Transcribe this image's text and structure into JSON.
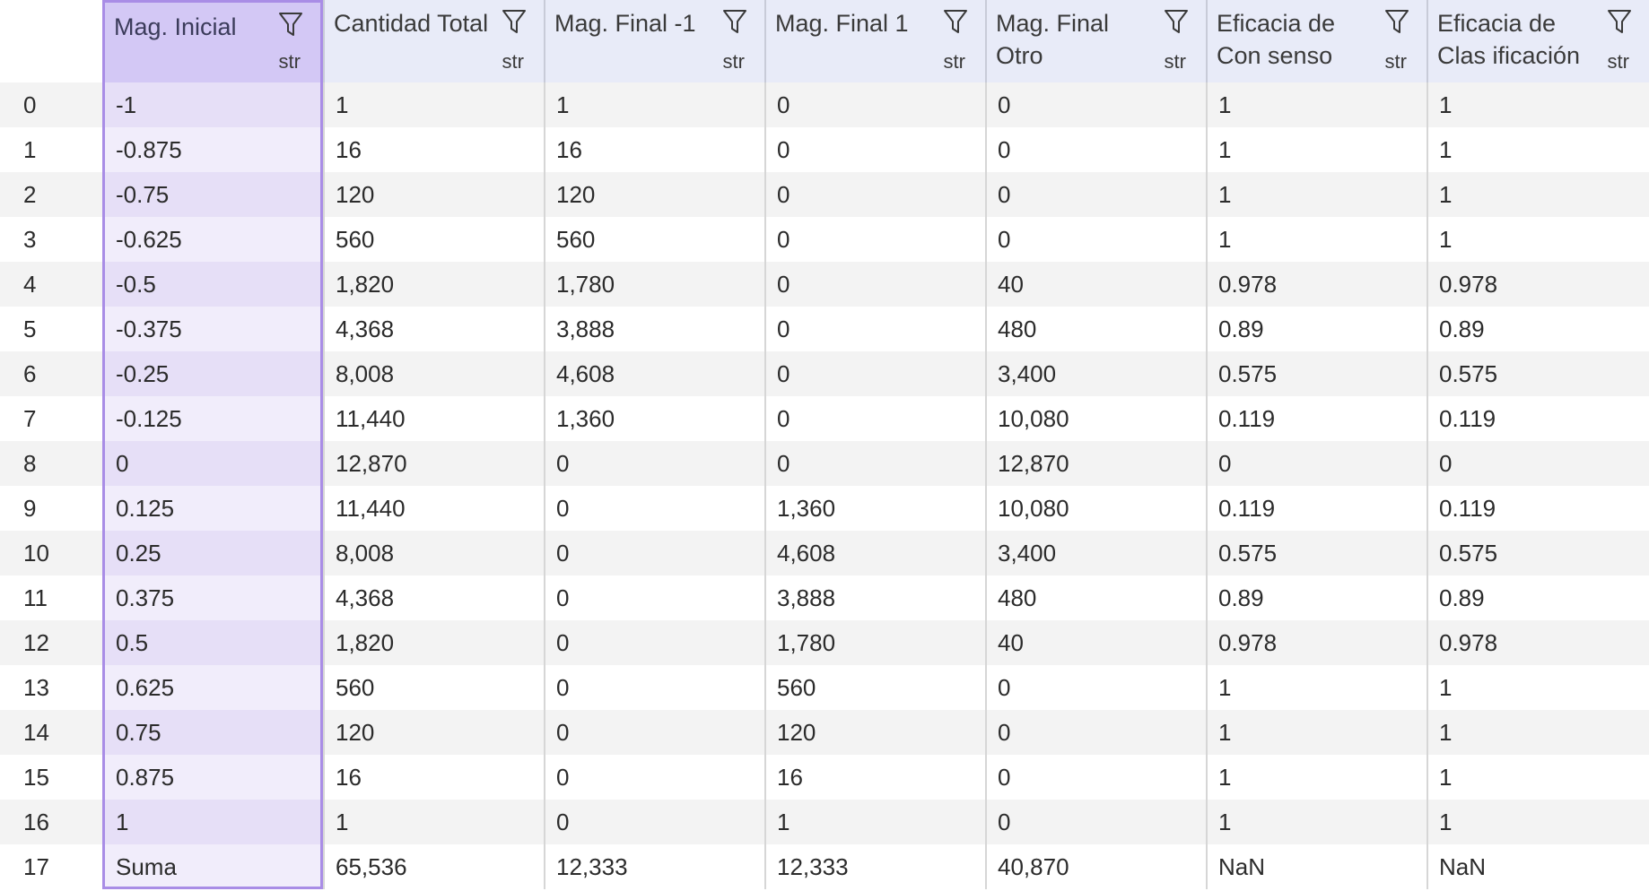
{
  "index_header": "",
  "columns": [
    {
      "title": "Mag. Inicial",
      "dtype": "str",
      "selected": true
    },
    {
      "title": "Cantidad Total",
      "dtype": "str",
      "selected": false
    },
    {
      "title": "Mag. Final -1",
      "dtype": "str",
      "selected": false
    },
    {
      "title": "Mag. Final 1",
      "dtype": "str",
      "selected": false
    },
    {
      "title": "Mag. Final Otro",
      "dtype": "str",
      "selected": false
    },
    {
      "title": "Eficacia de Con senso",
      "dtype": "str",
      "selected": false
    },
    {
      "title": "Eficacia de Clas ificación",
      "dtype": "str",
      "selected": false
    }
  ],
  "rows": [
    {
      "index": "0",
      "cells": [
        "-1",
        "1",
        "1",
        "0",
        "0",
        "1",
        "1"
      ]
    },
    {
      "index": "1",
      "cells": [
        "-0.875",
        "16",
        "16",
        "0",
        "0",
        "1",
        "1"
      ]
    },
    {
      "index": "2",
      "cells": [
        "-0.75",
        "120",
        "120",
        "0",
        "0",
        "1",
        "1"
      ]
    },
    {
      "index": "3",
      "cells": [
        "-0.625",
        "560",
        "560",
        "0",
        "0",
        "1",
        "1"
      ]
    },
    {
      "index": "4",
      "cells": [
        "-0.5",
        "1,820",
        "1,780",
        "0",
        "40",
        "0.978",
        "0.978"
      ]
    },
    {
      "index": "5",
      "cells": [
        "-0.375",
        "4,368",
        "3,888",
        "0",
        "480",
        "0.89",
        "0.89"
      ]
    },
    {
      "index": "6",
      "cells": [
        "-0.25",
        "8,008",
        "4,608",
        "0",
        "3,400",
        "0.575",
        "0.575"
      ]
    },
    {
      "index": "7",
      "cells": [
        "-0.125",
        "11,440",
        "1,360",
        "0",
        "10,080",
        "0.119",
        "0.119"
      ]
    },
    {
      "index": "8",
      "cells": [
        "0",
        "12,870",
        "0",
        "0",
        "12,870",
        "0",
        "0"
      ]
    },
    {
      "index": "9",
      "cells": [
        "0.125",
        "11,440",
        "0",
        "1,360",
        "10,080",
        "0.119",
        "0.119"
      ]
    },
    {
      "index": "10",
      "cells": [
        "0.25",
        "8,008",
        "0",
        "4,608",
        "3,400",
        "0.575",
        "0.575"
      ]
    },
    {
      "index": "11",
      "cells": [
        "0.375",
        "4,368",
        "0",
        "3,888",
        "480",
        "0.89",
        "0.89"
      ]
    },
    {
      "index": "12",
      "cells": [
        "0.5",
        "1,820",
        "0",
        "1,780",
        "40",
        "0.978",
        "0.978"
      ]
    },
    {
      "index": "13",
      "cells": [
        "0.625",
        "560",
        "0",
        "560",
        "0",
        "1",
        "1"
      ]
    },
    {
      "index": "14",
      "cells": [
        "0.75",
        "120",
        "0",
        "120",
        "0",
        "1",
        "1"
      ]
    },
    {
      "index": "15",
      "cells": [
        "0.875",
        "16",
        "0",
        "16",
        "0",
        "1",
        "1"
      ]
    },
    {
      "index": "16",
      "cells": [
        "1",
        "1",
        "0",
        "1",
        "0",
        "1",
        "1"
      ]
    },
    {
      "index": "17",
      "cells": [
        "Suma",
        "65,536",
        "12,333",
        "12,333",
        "40,870",
        "NaN",
        "NaN"
      ]
    }
  ],
  "colors": {
    "header_bg": "#e8ebf8",
    "selected_header_bg": "#d3c8f5",
    "selected_border": "#a98de6",
    "stripe": "#f3f3f3"
  },
  "icons": {
    "filter": "filter-icon"
  }
}
